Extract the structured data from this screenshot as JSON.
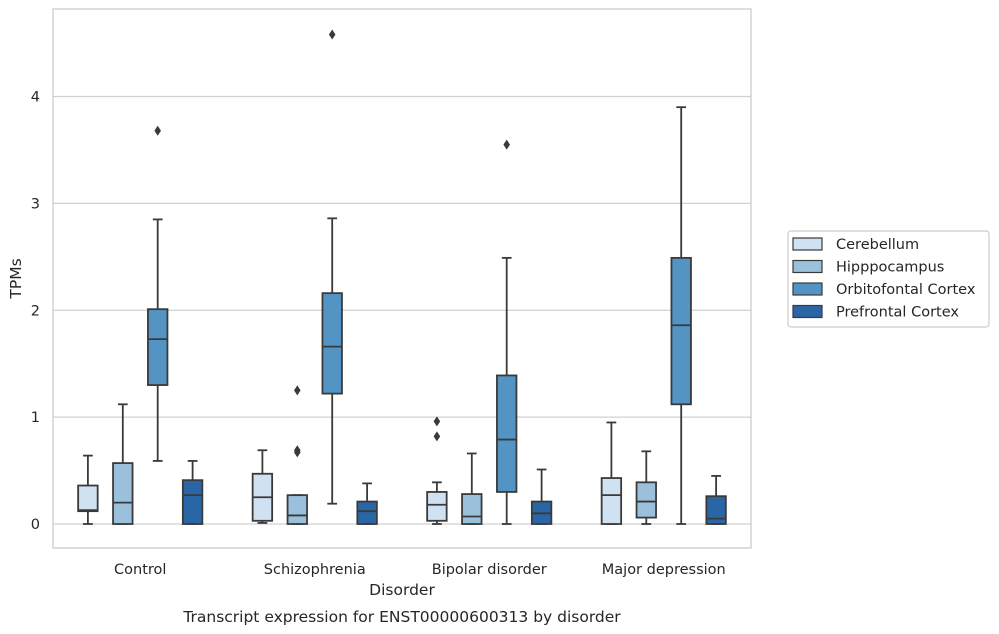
{
  "chart_data": {
    "type": "box",
    "caption": "Transcript expression for ENST00000600313 by disorder",
    "xlabel": "Disorder",
    "ylabel": "TPMs",
    "ylim": [
      -0.22,
      4.82
    ],
    "yticks": [
      "0",
      "1",
      "2",
      "3",
      "4"
    ],
    "ytick_values": [
      0,
      1,
      2,
      3,
      4
    ],
    "grid": "horizontal",
    "legend_position": "right",
    "categories": [
      "Control",
      "Schizophrenia",
      "Bipolar disorder",
      "Major depression"
    ],
    "series": [
      {
        "name": "Cerebellum",
        "color": "#d0e1f2",
        "boxes": [
          {
            "whislo": 0.0,
            "q1": 0.12,
            "med": 0.13,
            "q3": 0.36,
            "whishi": 0.64,
            "fliers": []
          },
          {
            "whislo": 0.01,
            "q1": 0.03,
            "med": 0.25,
            "q3": 0.47,
            "whishi": 0.69,
            "fliers": []
          },
          {
            "whislo": 0.0,
            "q1": 0.03,
            "med": 0.18,
            "q3": 0.3,
            "whishi": 0.39,
            "fliers": [
              0.82,
              0.96
            ]
          },
          {
            "whislo": 0.0,
            "q1": 0.0,
            "med": 0.27,
            "q3": 0.43,
            "whishi": 0.95,
            "fliers": []
          }
        ]
      },
      {
        "name": "Hipppocampus",
        "color": "#9ac0dc",
        "boxes": [
          {
            "whislo": 0.0,
            "q1": 0.0,
            "med": 0.2,
            "q3": 0.57,
            "whishi": 1.12,
            "fliers": []
          },
          {
            "whislo": 0.0,
            "q1": 0.0,
            "med": 0.08,
            "q3": 0.27,
            "whishi": 0.27,
            "fliers": [
              0.67,
              0.69,
              1.25
            ]
          },
          {
            "whislo": 0.0,
            "q1": 0.0,
            "med": 0.07,
            "q3": 0.28,
            "whishi": 0.66,
            "fliers": []
          },
          {
            "whislo": 0.0,
            "q1": 0.06,
            "med": 0.21,
            "q3": 0.39,
            "whishi": 0.68,
            "fliers": []
          }
        ]
      },
      {
        "name": "Orbitofontal Cortex",
        "color": "#5394c4",
        "boxes": [
          {
            "whislo": 0.59,
            "q1": 1.3,
            "med": 1.73,
            "q3": 2.01,
            "whishi": 2.85,
            "fliers": [
              3.68
            ]
          },
          {
            "whislo": 0.19,
            "q1": 1.22,
            "med": 1.66,
            "q3": 2.16,
            "whishi": 2.86,
            "fliers": [
              4.58
            ]
          },
          {
            "whislo": 0.0,
            "q1": 0.3,
            "med": 0.79,
            "q3": 1.39,
            "whishi": 2.49,
            "fliers": [
              3.55
            ]
          },
          {
            "whislo": 0.0,
            "q1": 1.12,
            "med": 1.86,
            "q3": 2.49,
            "whishi": 3.9,
            "fliers": []
          }
        ]
      },
      {
        "name": "Prefrontal Cortex",
        "color": "#2a66a6",
        "boxes": [
          {
            "whislo": 0.0,
            "q1": 0.0,
            "med": 0.27,
            "q3": 0.41,
            "whishi": 0.59,
            "fliers": []
          },
          {
            "whislo": 0.0,
            "q1": 0.0,
            "med": 0.12,
            "q3": 0.21,
            "whishi": 0.38,
            "fliers": []
          },
          {
            "whislo": 0.0,
            "q1": 0.0,
            "med": 0.1,
            "q3": 0.21,
            "whishi": 0.51,
            "fliers": []
          },
          {
            "whislo": 0.0,
            "q1": 0.0,
            "med": 0.05,
            "q3": 0.26,
            "whishi": 0.45,
            "fliers": []
          }
        ]
      }
    ]
  }
}
